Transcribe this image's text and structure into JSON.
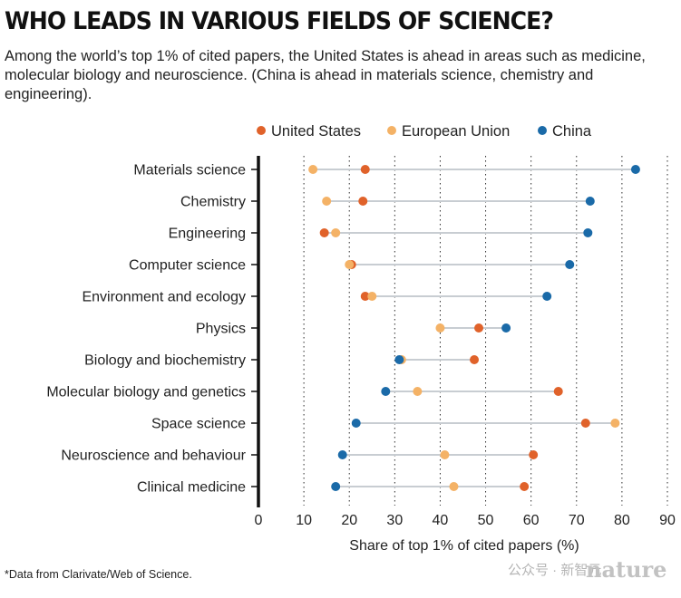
{
  "header": {
    "title": "WHO LEADS IN VARIOUS FIELDS OF SCIENCE?",
    "subtitle": "Among the world’s top 1% of cited papers, the United States is ahead in areas such as medicine, molecular biology and neuroscience. (China is ahead in materials science, chemistry and engineering)."
  },
  "footnote": "*Data from Clarivate/Web of Science.",
  "watermark": {
    "text": "公众号 · 新智元",
    "logo": "nature"
  },
  "colors": {
    "United States": "#e0622a",
    "European Union": "#f4b266",
    "China": "#1a6aa8",
    "connector": "#c8cdd2",
    "axis": "#111111"
  },
  "chart_data": {
    "type": "dot-range",
    "title": "WHO LEADS IN VARIOUS FIELDS OF SCIENCE?",
    "xlabel": "Share of top 1% of cited papers (%)",
    "xlim": [
      0,
      90
    ],
    "xticks": [
      0,
      10,
      20,
      30,
      40,
      50,
      60,
      70,
      80,
      90
    ],
    "grid": "vertical dotted",
    "legend_position": "top",
    "categories": [
      "Materials science",
      "Chemistry",
      "Engineering",
      "Computer science",
      "Environment and ecology",
      "Physics",
      "Biology and biochemistry",
      "Molecular biology and genetics",
      "Space science",
      "Neuroscience and behaviour",
      "Clinical medicine"
    ],
    "series": [
      {
        "name": "United States",
        "values": [
          23.5,
          23,
          14.5,
          20.5,
          23.5,
          48.5,
          47.5,
          66,
          72,
          60.5,
          58.5
        ]
      },
      {
        "name": "European Union",
        "values": [
          12,
          15,
          17,
          20,
          25,
          40,
          31.5,
          35,
          78.5,
          41,
          43
        ]
      },
      {
        "name": "China",
        "values": [
          83,
          73,
          72.5,
          68.5,
          63.5,
          54.5,
          31,
          28,
          21.5,
          18.5,
          17
        ]
      }
    ]
  }
}
